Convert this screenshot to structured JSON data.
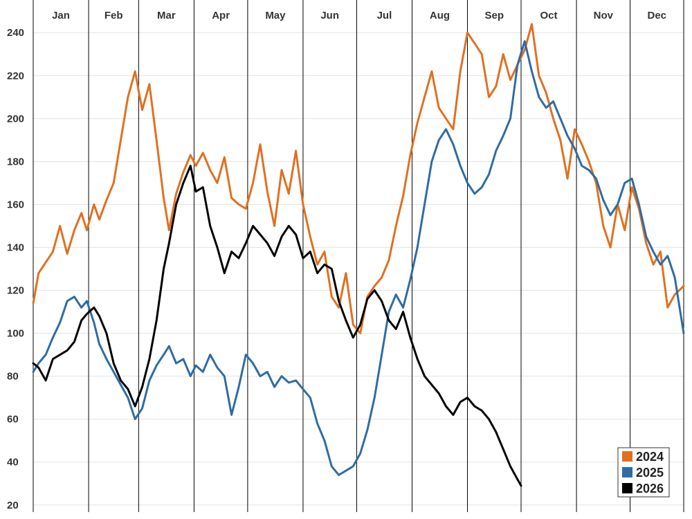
{
  "chart_data": {
    "type": "line",
    "title": "",
    "xlabel": "",
    "ylabel": "",
    "months": [
      "Jan",
      "Feb",
      "Mar",
      "Apr",
      "May",
      "Jun",
      "Jul",
      "Aug",
      "Sep",
      "Oct",
      "Nov",
      "Dec"
    ],
    "yticks": [
      20,
      40,
      60,
      80,
      100,
      120,
      140,
      160,
      180,
      200,
      220,
      240
    ],
    "ylim": [
      18,
      252
    ],
    "xlim": [
      1,
      365
    ],
    "grid": true,
    "legend_position": "bottom-right",
    "series": [
      {
        "name": "2024",
        "color": "#e07020",
        "x": [
          1,
          4,
          8,
          12,
          16,
          20,
          24,
          28,
          31,
          35,
          38,
          42,
          46,
          50,
          54,
          58,
          62,
          66,
          70,
          74,
          77,
          81,
          85,
          89,
          92,
          96,
          100,
          104,
          108,
          112,
          116,
          120,
          124,
          128,
          132,
          136,
          140,
          144,
          148,
          152,
          156,
          160,
          164,
          168,
          172,
          176,
          180,
          184,
          188,
          192,
          196,
          200,
          204,
          208,
          212,
          216,
          220,
          224,
          228,
          232,
          236,
          240,
          244,
          248,
          252,
          256,
          260,
          264,
          268,
          272,
          276,
          280,
          284,
          288,
          292,
          296,
          300,
          304,
          308,
          312,
          316,
          320,
          324,
          328,
          332,
          336,
          340,
          344,
          348,
          352,
          356,
          360,
          365
        ],
        "values": [
          114,
          128,
          133,
          138,
          150,
          137,
          148,
          156,
          148,
          160,
          153,
          162,
          170,
          190,
          210,
          222,
          204,
          216,
          190,
          163,
          148,
          165,
          175,
          183,
          178,
          184,
          176,
          170,
          182,
          163,
          160,
          158,
          170,
          188,
          166,
          150,
          176,
          165,
          185,
          160,
          145,
          132,
          138,
          117,
          112,
          128,
          104,
          100,
          117,
          122,
          126,
          134,
          150,
          164,
          183,
          198,
          210,
          222,
          205,
          200,
          195,
          222,
          240,
          235,
          230,
          210,
          215,
          230,
          218,
          225,
          232,
          244,
          220,
          212,
          200,
          190,
          172,
          195,
          188,
          180,
          170,
          150,
          140,
          160,
          148,
          168,
          158,
          142,
          132,
          138,
          112,
          118,
          122
        ]
      },
      {
        "name": "2025",
        "color": "#2e6ca4",
        "x": [
          1,
          4,
          8,
          12,
          16,
          20,
          24,
          28,
          31,
          35,
          38,
          42,
          46,
          50,
          54,
          58,
          62,
          66,
          70,
          74,
          77,
          81,
          85,
          89,
          92,
          96,
          100,
          104,
          108,
          112,
          116,
          120,
          124,
          128,
          132,
          136,
          140,
          144,
          148,
          152,
          156,
          160,
          164,
          168,
          172,
          176,
          180,
          184,
          188,
          192,
          196,
          200,
          204,
          208,
          212,
          216,
          220,
          224,
          228,
          232,
          236,
          240,
          244,
          248,
          252,
          256,
          260,
          264,
          268,
          272,
          276,
          280,
          284,
          288,
          292,
          296,
          300,
          304,
          308,
          312,
          316,
          320,
          324,
          328,
          332,
          336,
          340,
          344,
          348,
          352,
          356,
          360,
          365
        ],
        "values": [
          82,
          86,
          90,
          98,
          105,
          115,
          117,
          112,
          115,
          105,
          95,
          88,
          82,
          76,
          70,
          60,
          65,
          78,
          85,
          90,
          94,
          86,
          88,
          80,
          85,
          82,
          90,
          84,
          80,
          62,
          75,
          90,
          86,
          80,
          82,
          75,
          80,
          77,
          78,
          74,
          70,
          58,
          50,
          38,
          34,
          36,
          38,
          44,
          55,
          70,
          90,
          110,
          118,
          112,
          125,
          140,
          160,
          180,
          190,
          195,
          188,
          178,
          170,
          165,
          168,
          174,
          185,
          192,
          200,
          225,
          236,
          222,
          210,
          205,
          208,
          200,
          192,
          186,
          178,
          176,
          172,
          162,
          155,
          160,
          170,
          172,
          160,
          145,
          138,
          132,
          136,
          126,
          100
        ]
      },
      {
        "name": "2026",
        "color": "#000000",
        "x": [
          1,
          4,
          8,
          12,
          16,
          20,
          24,
          28,
          31,
          35,
          38,
          42,
          46,
          50,
          54,
          58,
          62,
          66,
          70,
          74,
          77,
          81,
          85,
          89,
          92,
          96,
          100,
          104,
          108,
          112,
          116,
          120,
          124,
          128,
          132,
          136,
          140,
          144,
          148,
          152,
          156,
          160,
          164,
          168,
          172,
          176,
          180,
          184,
          188,
          192,
          196,
          200,
          204,
          208,
          212,
          216,
          220,
          224,
          228,
          232,
          236,
          240,
          244,
          248,
          252,
          256,
          260,
          264,
          268,
          272,
          274
        ],
        "values": [
          86,
          84,
          78,
          88,
          90,
          92,
          96,
          106,
          109,
          112,
          108,
          100,
          86,
          78,
          74,
          66,
          75,
          88,
          106,
          130,
          142,
          160,
          170,
          178,
          166,
          168,
          150,
          140,
          128,
          138,
          135,
          142,
          150,
          146,
          142,
          136,
          145,
          150,
          146,
          135,
          138,
          128,
          132,
          130,
          115,
          106,
          98,
          104,
          116,
          120,
          115,
          106,
          102,
          110,
          98,
          88,
          80,
          76,
          72,
          66,
          62,
          68,
          70,
          66,
          64,
          60,
          54,
          46,
          38,
          32,
          29
        ]
      }
    ]
  }
}
